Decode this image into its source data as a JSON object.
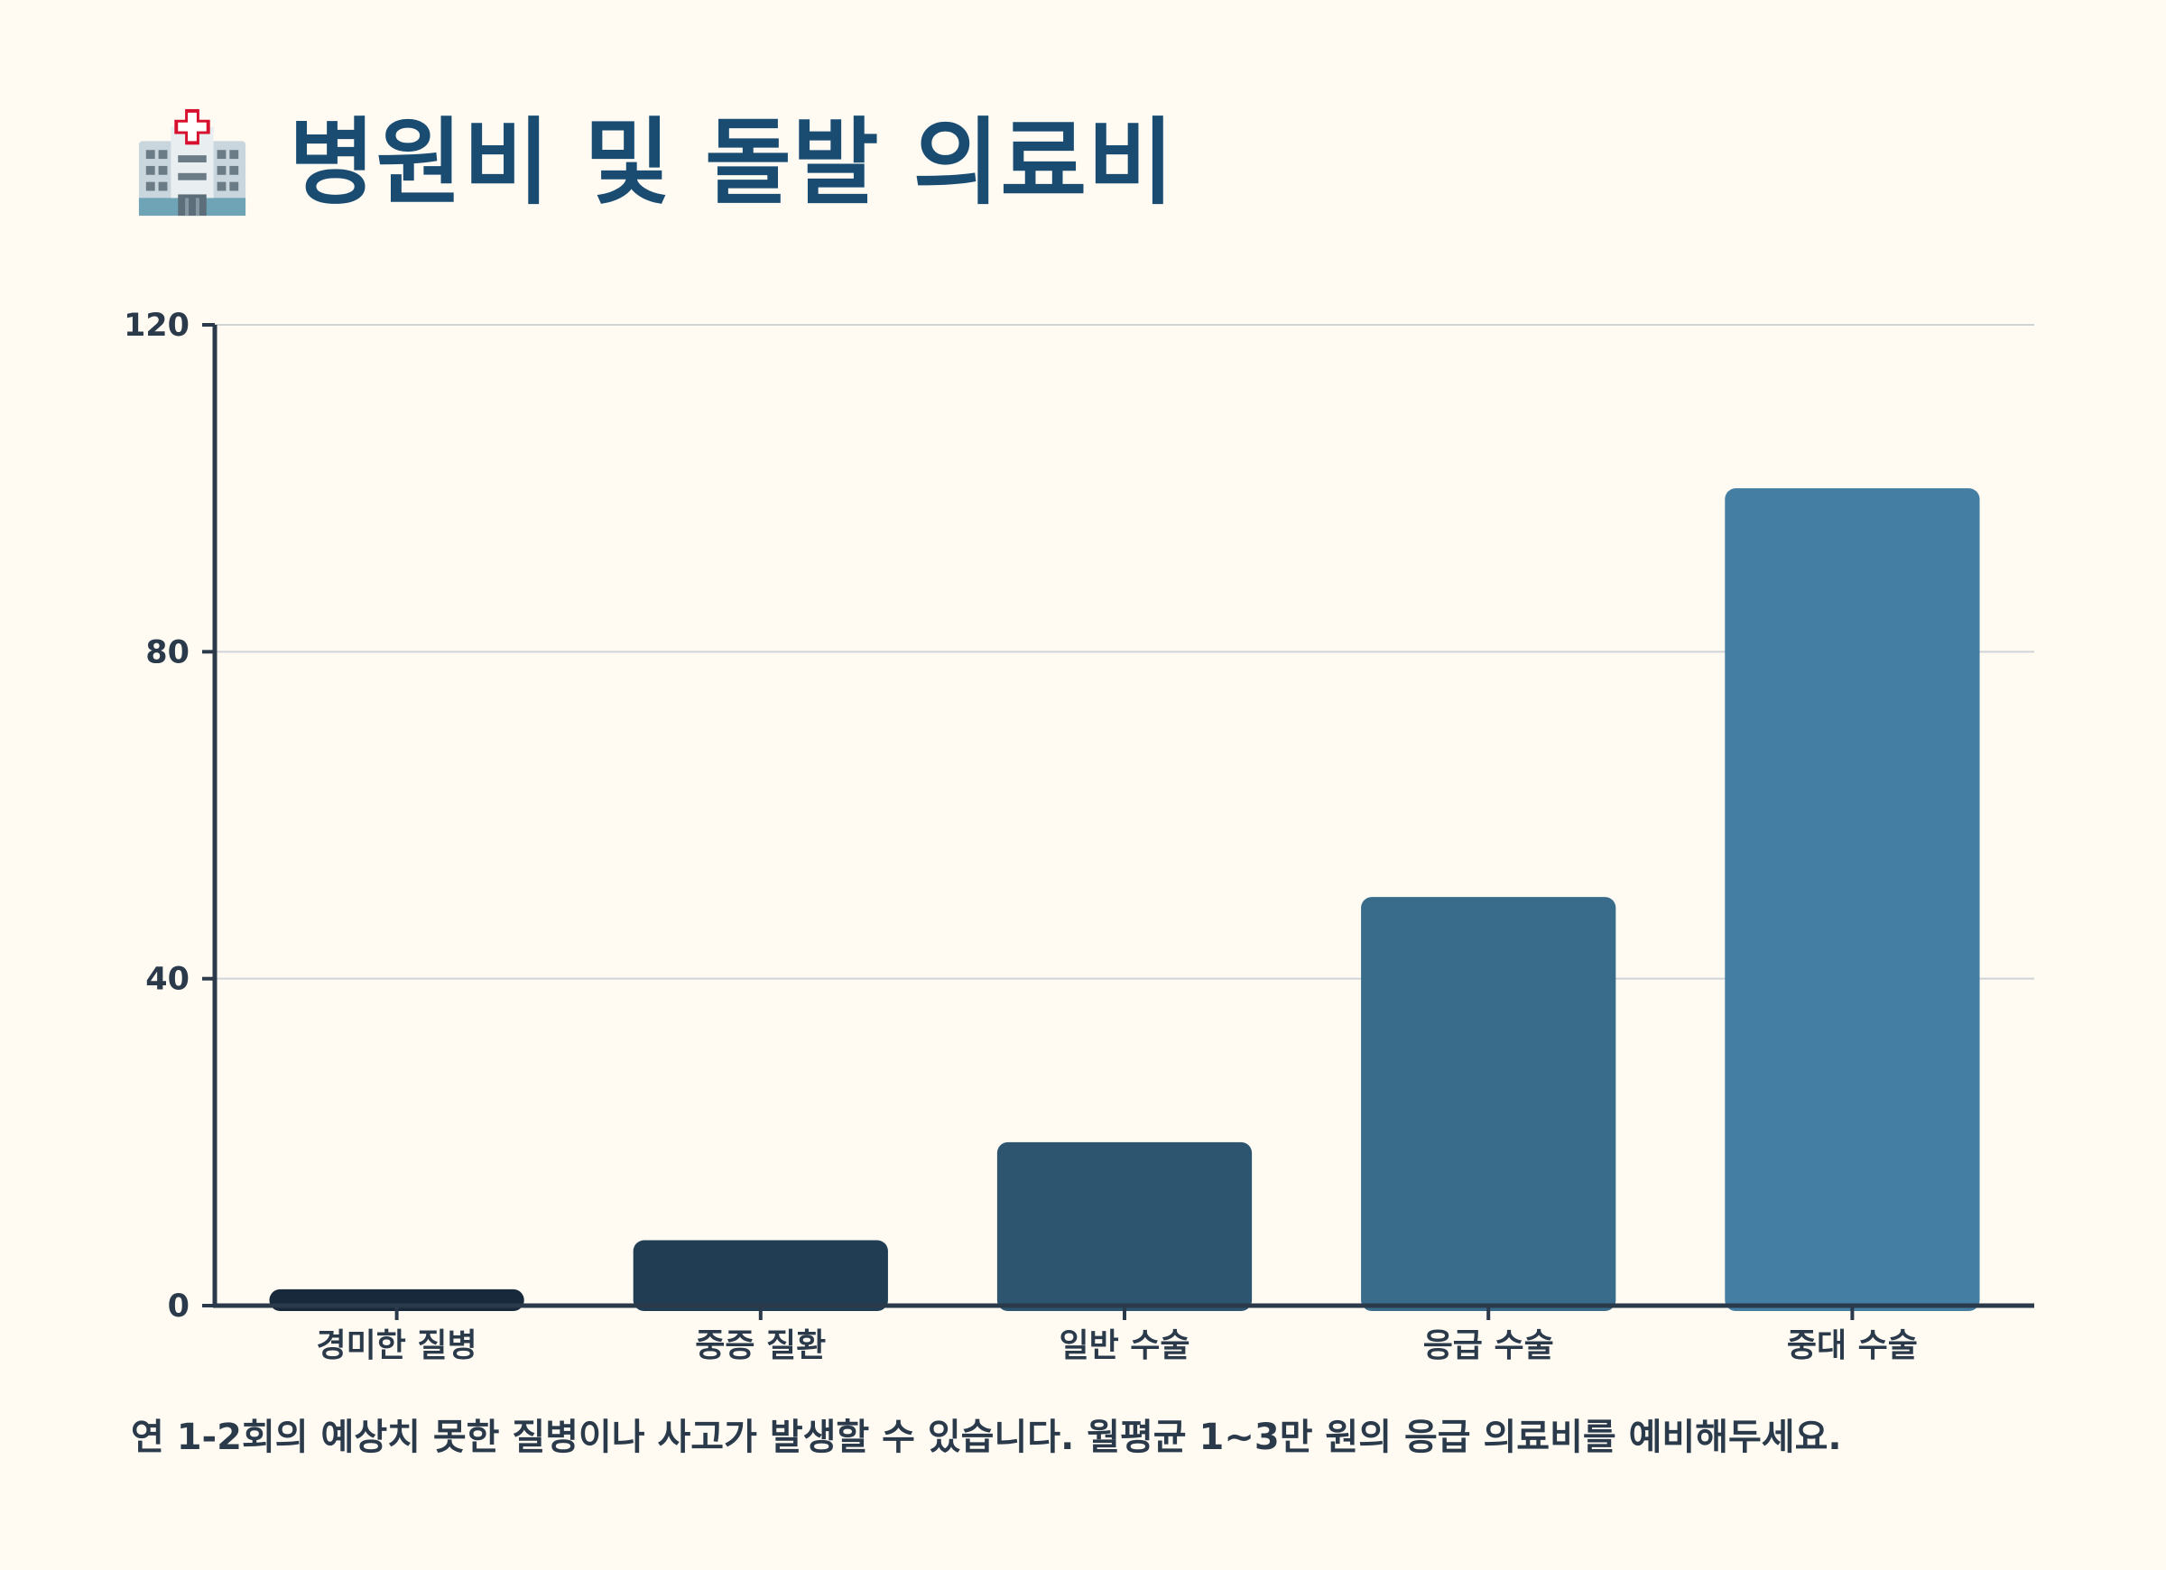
{
  "header": {
    "title": "병원비 및 돌발 의료비",
    "icon": "hospital-icon"
  },
  "chart_data": {
    "type": "bar",
    "title": "병원비 및 돌발 의료비",
    "xlabel": "",
    "ylabel": "",
    "categories": [
      "경미한 질병",
      "중증 질환",
      "일반 수술",
      "응급 수술",
      "중대 수술"
    ],
    "values": [
      2,
      8,
      20,
      50,
      100
    ],
    "ylim": [
      0,
      120
    ],
    "yticks": [
      0,
      40,
      80,
      120
    ],
    "grid": true,
    "legend": "none",
    "colors": [
      "#17293a",
      "#213d53",
      "#2e556f",
      "#396b8b",
      "#447ea3"
    ]
  },
  "footnote": "연 1-2회의 예상치 못한 질병이나 사고가 발생할 수 있습니다. 월평균 1~3만 원의 응급 의료비를 예비해두세요.",
  "colors": {
    "background": "#fffbf3",
    "title": "#1a4c72",
    "axis": "#2b3a4a",
    "grid": "#cfd4d8"
  }
}
